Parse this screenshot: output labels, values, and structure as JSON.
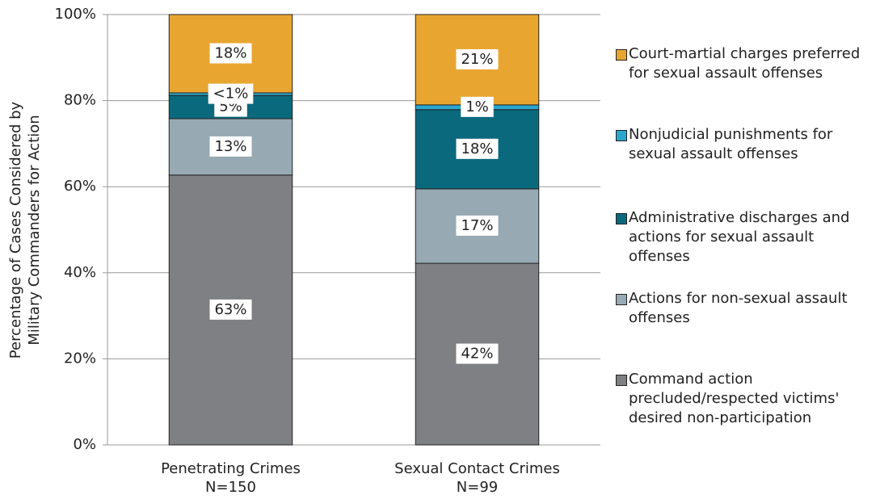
{
  "chart_data": {
    "type": "stacked_bar",
    "y_label": [
      "Percentage of Cases Considered by",
      "Military Commanders for Action"
    ],
    "categories": [
      "Penetrating Crimes",
      "Sexual Contact Crimes"
    ],
    "category_sublabels": [
      "N=150",
      "N=99"
    ],
    "series": [
      {
        "name": "Command action precluded/respected victims' desired non-participation",
        "color": "#7f8083",
        "values": [
          62.7,
          42.2
        ],
        "value_labels": [
          "63%",
          "42%"
        ]
      },
      {
        "name": "Actions for non-sexual assault offenses",
        "color": "#97aab3",
        "values": [
          13.1,
          17.3
        ],
        "value_labels": [
          "13%",
          "17%"
        ]
      },
      {
        "name": "Administrative discharges and actions for sexual assault offenses",
        "color": "#0b697d",
        "values": [
          5.4,
          18.4
        ],
        "value_labels": [
          "5%",
          "18%"
        ]
      },
      {
        "name": "Nonjudicial punishments for sexual assault offenses",
        "color": "#2ba6cf",
        "values": [
          0.6,
          1.1
        ],
        "value_labels": [
          "<1%",
          "1%"
        ]
      },
      {
        "name": "Court-martial charges preferred for sexual assault offenses",
        "color": "#e8a630",
        "values": [
          18.2,
          21.0
        ],
        "value_labels": [
          "18%",
          "21%"
        ]
      }
    ],
    "ylim": [
      0,
      100
    ],
    "yticks": [
      {
        "value": 0,
        "label": "0%"
      },
      {
        "value": 20,
        "label": "20%"
      },
      {
        "value": 40,
        "label": "40%"
      },
      {
        "value": 60,
        "label": "60%"
      },
      {
        "value": 80,
        "label": "80%"
      },
      {
        "value": 100,
        "label": "100%"
      }
    ],
    "grid": true,
    "legend": "right"
  }
}
